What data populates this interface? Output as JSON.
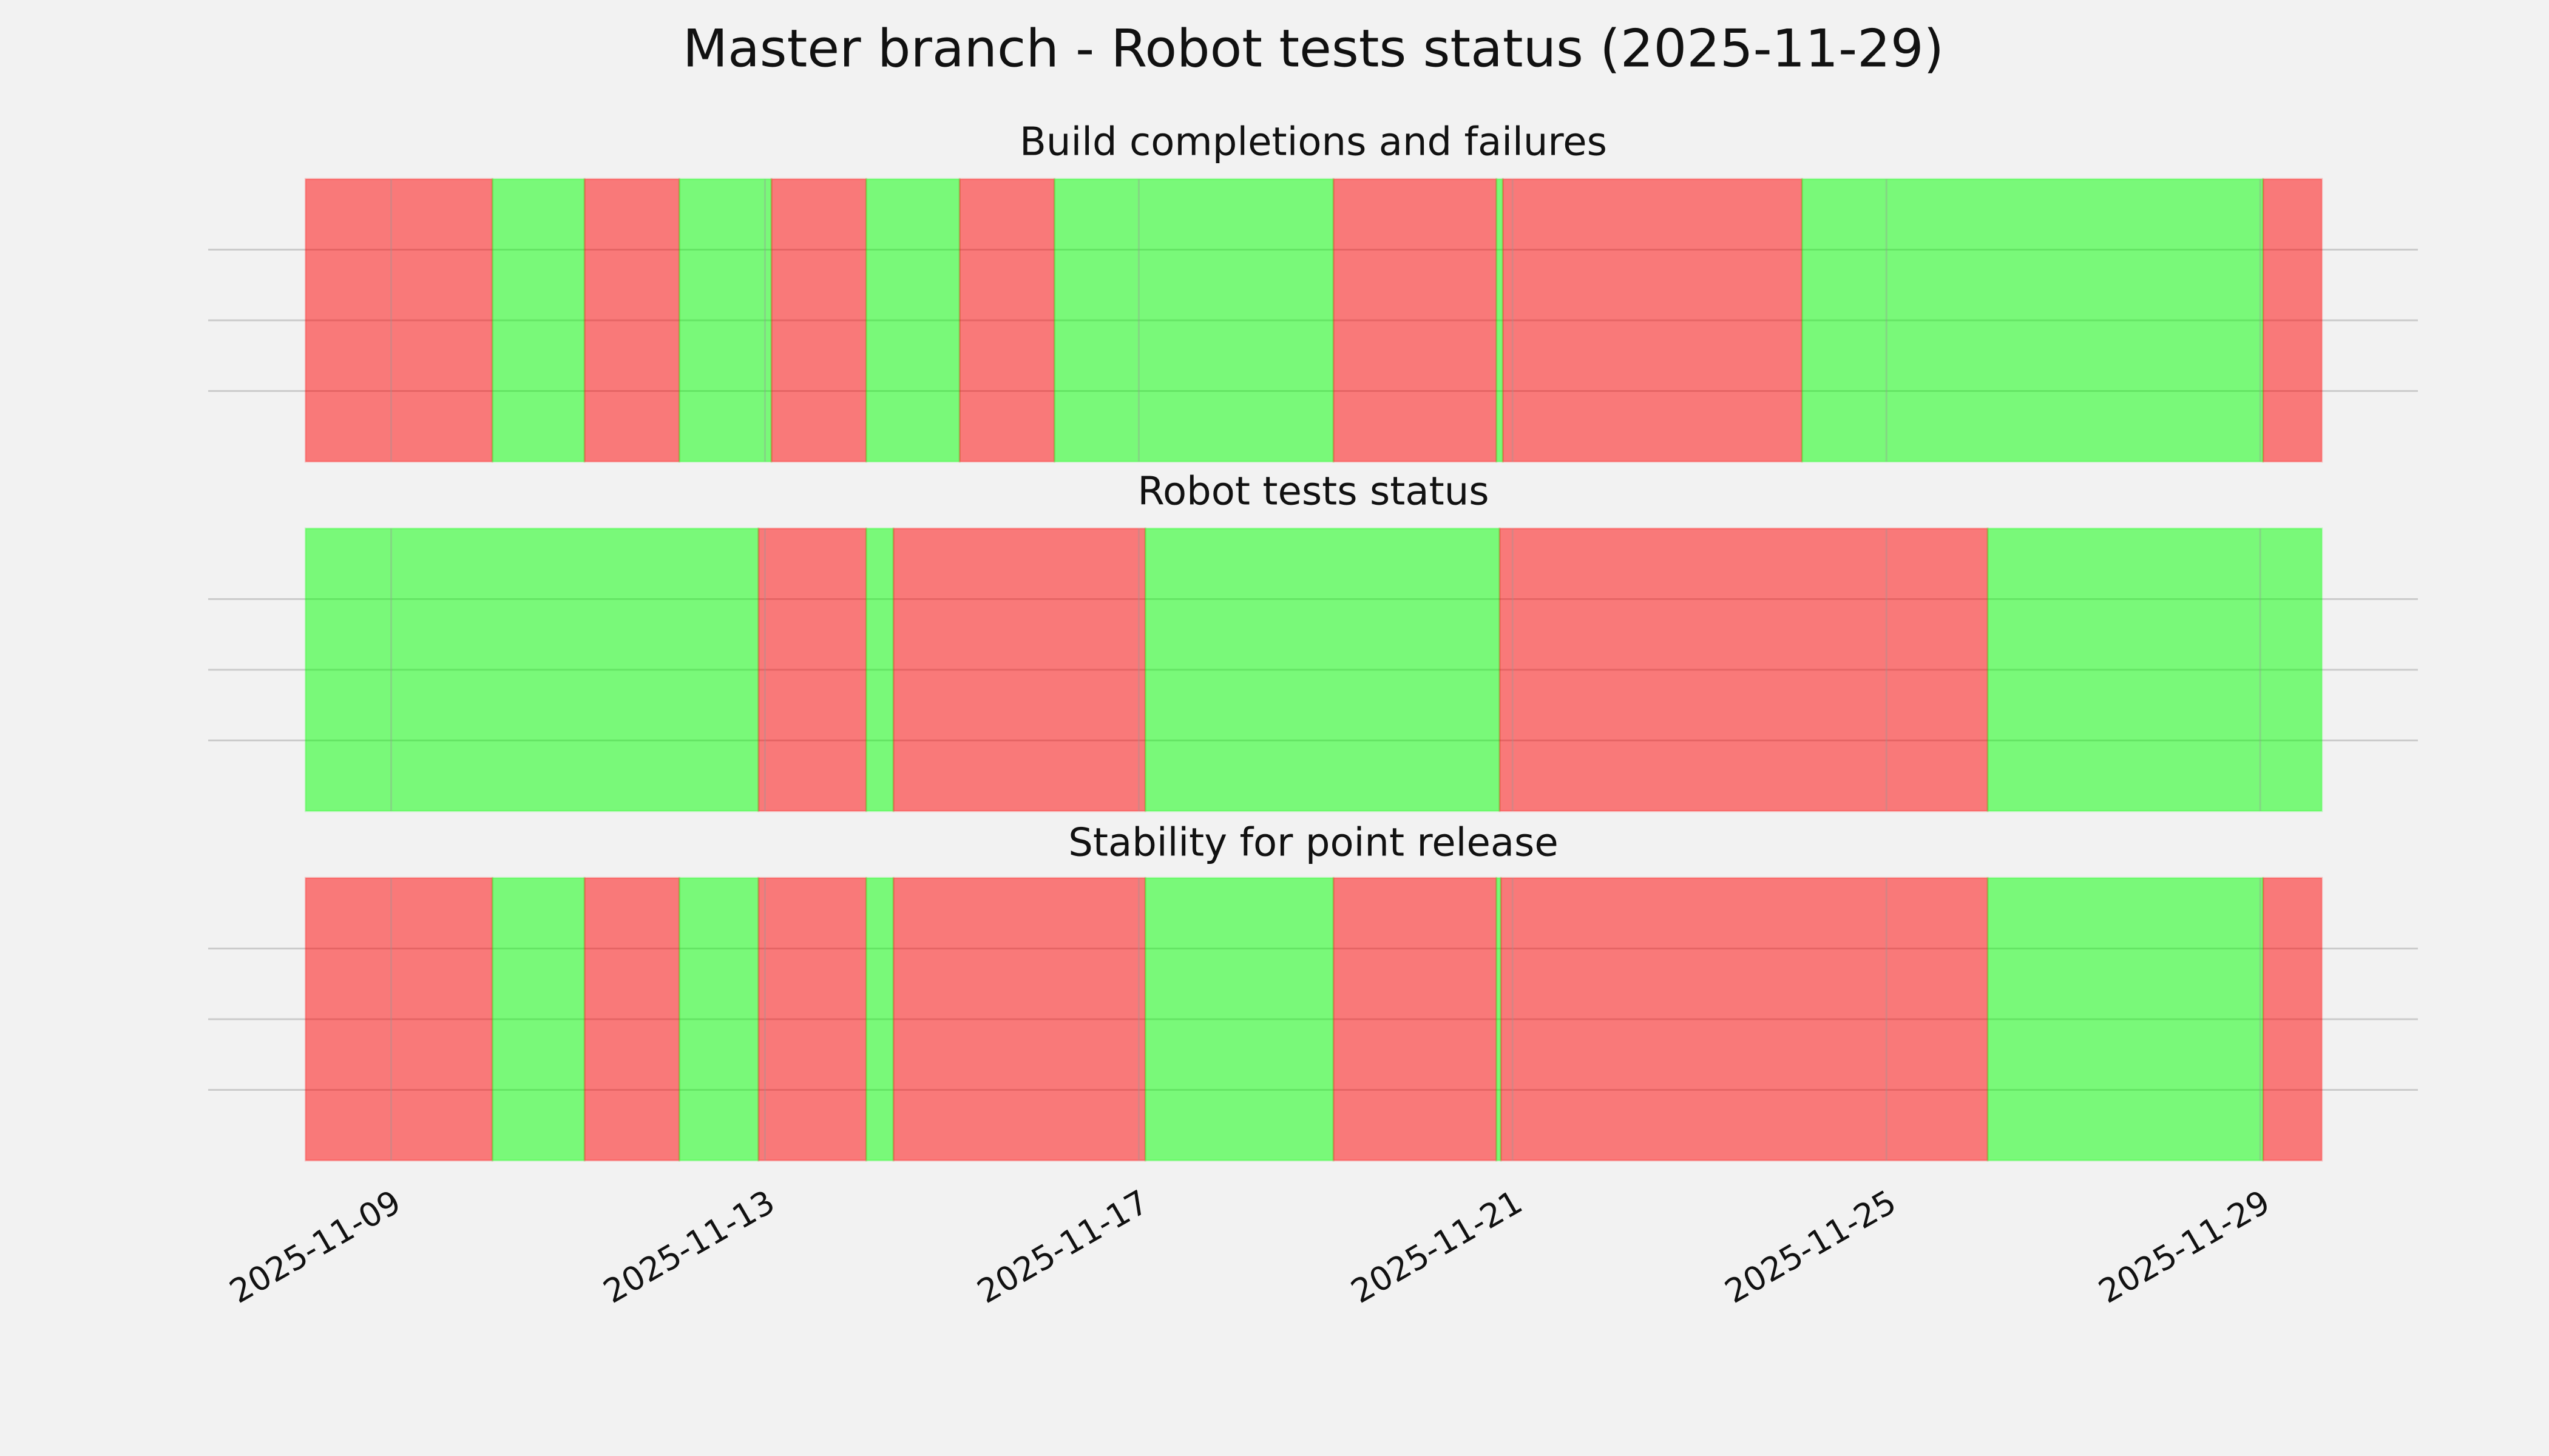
{
  "chart_data": {
    "type": "timeline",
    "title": "Master branch - Robot tests status (2025-11-29)",
    "xlim": [
      "2025-11-07T01:00",
      "2025-11-30T16:30"
    ],
    "xticks": [
      "2025-11-09",
      "2025-11-13",
      "2025-11-17",
      "2025-11-21",
      "2025-11-25",
      "2025-11-29"
    ],
    "ylim": [
      0,
      1
    ],
    "yticks": [
      0.25,
      0.5,
      0.75
    ],
    "grid": true,
    "alpha": 0.5,
    "panels": [
      {
        "title": "Build completions and failures",
        "x": [
          "2025-11-08T02:00",
          "2025-11-10T02:00",
          "2025-11-11T01:40",
          "2025-11-12T02:00",
          "2025-11-13T01:40",
          "2025-11-14T02:00",
          "2025-11-15T02:00",
          "2025-11-16T02:20",
          "2025-11-19T02:00",
          "2025-11-20T19:50",
          "2025-11-20T21:30",
          "2025-11-24T02:20",
          "2025-11-29T00:45",
          "2025-11-29T15:50"
        ],
        "colors": [
          "#ff0000",
          "#00ff00",
          "#ff0000",
          "#00ff00",
          "#ff0000",
          "#00ff00",
          "#ff0000",
          "#00ff00",
          "#ff0000",
          "#00ff00",
          "#ff0000",
          "#00ff00",
          "#ff0000"
        ]
      },
      {
        "title": "Robot tests status",
        "x": [
          "2025-11-08T02:00",
          "2025-11-12T22:20",
          "2025-11-14T02:00",
          "2025-11-14T09:00",
          "2025-11-17T01:40",
          "2025-11-20T20:40",
          "2025-11-26T02:00",
          "2025-11-29T15:50"
        ],
        "colors": [
          "#00ff00",
          "#ff0000",
          "#00ff00",
          "#ff0000",
          "#00ff00",
          "#ff0000",
          "#00ff00"
        ]
      },
      {
        "title": "Stability for point release",
        "x": [
          "2025-11-08T02:00",
          "2025-11-10T02:00",
          "2025-11-11T01:40",
          "2025-11-12T02:00",
          "2025-11-12T22:20",
          "2025-11-14T02:00",
          "2025-11-14T09:00",
          "2025-11-17T01:40",
          "2025-11-19T02:00",
          "2025-11-20T19:50",
          "2025-11-20T21:00",
          "2025-11-26T02:00",
          "2025-11-29T00:45",
          "2025-11-29T15:50"
        ],
        "colors": [
          "#ff0000",
          "#00ff00",
          "#ff0000",
          "#00ff00",
          "#ff0000",
          "#00ff00",
          "#ff0000",
          "#00ff00",
          "#ff0000",
          "#00ff00",
          "#ff0000",
          "#00ff00",
          "#ff0000"
        ]
      }
    ]
  }
}
